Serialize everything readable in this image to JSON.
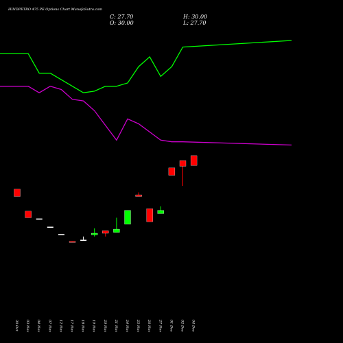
{
  "chart_data": {
    "type": "candlestick",
    "title": "HINDPETRO 475 PE Options  Chart MunafaSutra.com",
    "ohlc_readout": {
      "close": "C: 27.70",
      "open": "O: 30.00",
      "high": "H: 30.00",
      "low": "L: 27.70"
    },
    "categories": [
      "30 Oct",
      "03 Nov",
      "04 Nov",
      "07 Nov",
      "12 Nov",
      "17 Nov",
      "18 Nov",
      "19 Nov",
      "20 Nov",
      "21 Nov",
      "24 Nov",
      "25 Nov",
      "26 Nov",
      "27 Nov",
      "01 Dec",
      "02 Dec",
      "04 Dec"
    ],
    "candles": [
      {
        "open": 69.0,
        "high": 69.0,
        "low": 64.5,
        "close": 64.5
      },
      {
        "open": 55.5,
        "high": 55.5,
        "low": 51.5,
        "close": 51.5
      },
      {
        "open": 51.0,
        "high": 51.0,
        "low": 51.0,
        "close": 51.0
      },
      {
        "open": 46.0,
        "high": 46.0,
        "low": 46.0,
        "close": 46.0
      },
      {
        "open": 41.5,
        "high": 41.5,
        "low": 41.5,
        "close": 41.5
      },
      {
        "open": 37.0,
        "high": 37.0,
        "low": 36.5,
        "close": 36.5
      },
      {
        "open": 38.0,
        "high": 40.0,
        "low": 38.0,
        "close": 38.0
      },
      {
        "open": 41.0,
        "high": 45.0,
        "low": 40.0,
        "close": 42.0
      },
      {
        "open": 43.5,
        "high": 43.5,
        "low": 40.0,
        "close": 42.0
      },
      {
        "open": 42.5,
        "high": 51.5,
        "low": 42.5,
        "close": 44.5
      },
      {
        "open": 47.5,
        "high": 56.0,
        "low": 47.5,
        "close": 56.0
      },
      {
        "open": 65.5,
        "high": 67.0,
        "low": 64.5,
        "close": 64.5
      },
      {
        "open": 57.0,
        "high": 57.0,
        "low": 49.0,
        "close": 49.0
      },
      {
        "open": 54.0,
        "high": 58.5,
        "low": 54.0,
        "close": 56.0
      },
      {
        "open": 82.0,
        "high": 82.0,
        "low": 77.5,
        "close": 77.5
      },
      {
        "open": 86.5,
        "high": 86.5,
        "low": 71.0,
        "close": 83.0
      },
      {
        "open": 89.5,
        "high": 89.5,
        "low": 83.5,
        "close": 83.5
      }
    ],
    "candle_colors": {
      "up": "#00ff00",
      "down": "#ff0000",
      "doji": "#ffffff"
    },
    "series": [
      {
        "color": "#00ff00",
        "values": [
          152,
          152,
          140,
          140,
          136,
          132,
          128,
          129,
          132,
          132,
          134,
          144,
          150,
          138,
          144,
          156,
          160
        ]
      },
      {
        "color": "#cc00cc",
        "values": [
          132,
          132,
          128,
          132,
          130,
          124,
          123,
          117,
          108,
          99,
          112,
          109,
          104,
          99,
          98,
          98,
          96
        ]
      }
    ],
    "ylim": [
      0,
      168
    ],
    "grid": false,
    "background": "#000000"
  }
}
